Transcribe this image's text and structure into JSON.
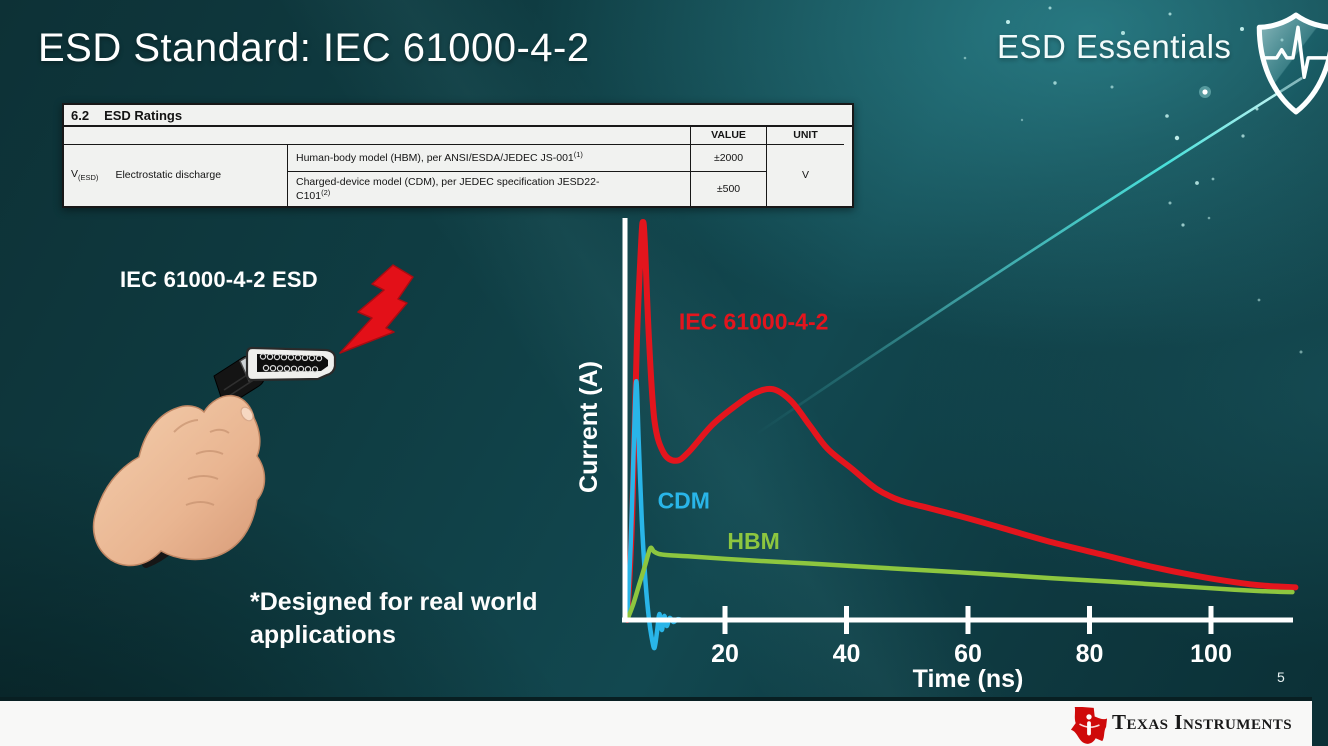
{
  "slide": {
    "title": "ESD Standard: IEC 61000-4-2",
    "brand": "ESD Essentials",
    "page_number": "5",
    "footer_logo_text": "Texas Instruments"
  },
  "table": {
    "heading_num": "6.2",
    "heading_text": "ESD Ratings",
    "col_value": "VALUE",
    "col_unit": "UNIT",
    "symbol": "V",
    "symbol_sub": "(ESD)",
    "parameter": "Electrostatic discharge",
    "row1_desc": "Human-body model (HBM), per ANSI/ESDA/JEDEC JS-001",
    "row1_sup": "(1)",
    "row1_value": "±2000",
    "row2_desc_line1": "Charged-device model (CDM), per JEDEC specification JESD22-",
    "row2_desc_line2": "C101",
    "row2_sup": "(2)",
    "row2_value": "±500",
    "unit": "V"
  },
  "illustration": {
    "label": "IEC 61000-4-2 ESD",
    "note_line1": "*Designed for real world",
    "note_line2": "applications"
  },
  "chart_data": {
    "type": "line",
    "title": "",
    "xlabel": "Time (ns)",
    "ylabel": "Current (A)",
    "x_ticks": [
      20,
      40,
      60,
      80,
      100
    ],
    "xlim": [
      0,
      114
    ],
    "ylim_relative_pct": [
      -10,
      105
    ],
    "grid": false,
    "legend_position": "inline-labels",
    "y_unit_note": "relative peak current, % of IEC first peak (axis unlabeled in source)",
    "series": [
      {
        "name": "IEC 61000-4-2",
        "color": "#e3151d",
        "label_at": [
          12.4,
          73
        ],
        "points": [
          [
            3.9,
            0
          ],
          [
            4.7,
            25
          ],
          [
            5.5,
            70
          ],
          [
            6.2,
            95
          ],
          [
            6.5,
            100
          ],
          [
            6.8,
            95
          ],
          [
            7.5,
            70
          ],
          [
            8.4,
            50
          ],
          [
            9.9,
            42
          ],
          [
            11.9,
            40
          ],
          [
            13.9,
            42
          ],
          [
            17.9,
            49
          ],
          [
            21.9,
            54
          ],
          [
            24.9,
            57
          ],
          [
            27.9,
            58
          ],
          [
            30.9,
            55
          ],
          [
            33.9,
            49
          ],
          [
            36.9,
            43
          ],
          [
            40.9,
            38
          ],
          [
            44.9,
            33
          ],
          [
            48.9,
            30
          ],
          [
            53.9,
            28
          ],
          [
            58.9,
            26
          ],
          [
            65.9,
            23
          ],
          [
            73.9,
            19.5
          ],
          [
            81.9,
            16.5
          ],
          [
            89.9,
            13.5
          ],
          [
            97.9,
            11
          ],
          [
            103.9,
            9.5
          ],
          [
            108.9,
            8.6
          ],
          [
            113.9,
            8.2
          ]
        ]
      },
      {
        "name": "CDM",
        "color": "#29b5e8",
        "label_at": [
          8.9,
          28
        ],
        "points": [
          [
            3.9,
            0
          ],
          [
            4.5,
            20
          ],
          [
            5.0,
            45
          ],
          [
            5.4,
            60
          ],
          [
            5.8,
            45
          ],
          [
            6.3,
            25
          ],
          [
            6.9,
            10
          ],
          [
            7.5,
            0
          ],
          [
            8.0,
            -5
          ],
          [
            8.4,
            -7
          ],
          [
            8.8,
            -3
          ],
          [
            9.2,
            1.5
          ],
          [
            9.6,
            -2.5
          ],
          [
            10.0,
            1
          ],
          [
            10.4,
            -1.5
          ],
          [
            10.9,
            0.5
          ],
          [
            11.5,
            -0.5
          ],
          [
            12.2,
            0.2
          ],
          [
            13.1,
            0
          ],
          [
            14.4,
            0
          ]
        ]
      },
      {
        "name": "HBM",
        "color": "#8dc63f",
        "label_at": [
          20.4,
          17.8
        ],
        "points": [
          [
            3.9,
            0
          ],
          [
            4.9,
            4
          ],
          [
            5.9,
            9
          ],
          [
            6.9,
            14
          ],
          [
            7.7,
            18
          ],
          [
            8.3,
            17.2
          ],
          [
            9.1,
            16.6
          ],
          [
            10.6,
            16.3
          ],
          [
            13.9,
            16
          ],
          [
            23.9,
            15
          ],
          [
            33.9,
            14.2
          ],
          [
            43.9,
            13.3
          ],
          [
            53.9,
            12.4
          ],
          [
            63.9,
            11.5
          ],
          [
            73.9,
            10.5
          ],
          [
            83.9,
            9.6
          ],
          [
            93.9,
            8.6
          ],
          [
            103.9,
            7.6
          ],
          [
            108.9,
            7.2
          ],
          [
            113.4,
            7
          ]
        ]
      }
    ]
  }
}
